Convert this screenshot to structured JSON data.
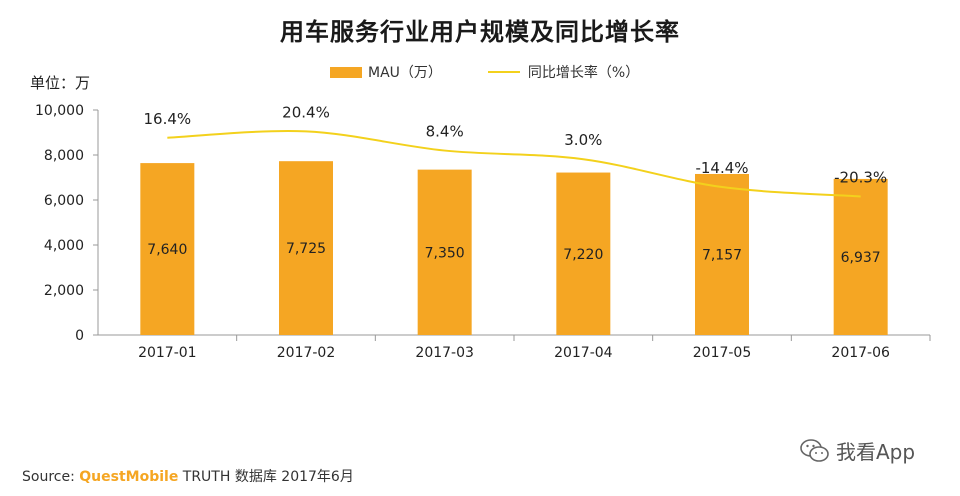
{
  "chart_data": {
    "type": "bar",
    "title": "用车服务行业用户规模及同比增长率",
    "unit_label": "单位：万",
    "categories": [
      "2017-01",
      "2017-02",
      "2017-03",
      "2017-04",
      "2017-05",
      "2017-06"
    ],
    "series": [
      {
        "name": "MAU（万）",
        "type": "bar",
        "values": [
          7640,
          7725,
          7350,
          7220,
          7157,
          6937
        ],
        "value_labels": [
          "7,640",
          "7,725",
          "7,350",
          "7,220",
          "7,157",
          "6,937"
        ],
        "color": "#F5A623"
      },
      {
        "name": "同比增长率（%）",
        "type": "line",
        "values": [
          16.4,
          20.4,
          8.4,
          3.0,
          -14.4,
          -20.3
        ],
        "value_labels": [
          "16.4%",
          "20.4%",
          "8.4%",
          "3.0%",
          "-14.4%",
          "-20.3%"
        ],
        "color": "#F3D11C"
      }
    ],
    "ylim": [
      0,
      10000
    ],
    "yticks": [
      0,
      2000,
      4000,
      6000,
      8000,
      10000
    ],
    "ytick_labels": [
      "0",
      "2,000",
      "4,000",
      "6,000",
      "8,000",
      "10,000"
    ],
    "xlabel": "",
    "ylabel": "",
    "legend_position": "top-center",
    "grid": false
  },
  "source": {
    "prefix": "Source:",
    "brand": "QuestMobile",
    "suffix": "TRUTH 数据库 2017年6月"
  },
  "watermark": {
    "text": "我看App",
    "icon": "wechat-icon"
  }
}
